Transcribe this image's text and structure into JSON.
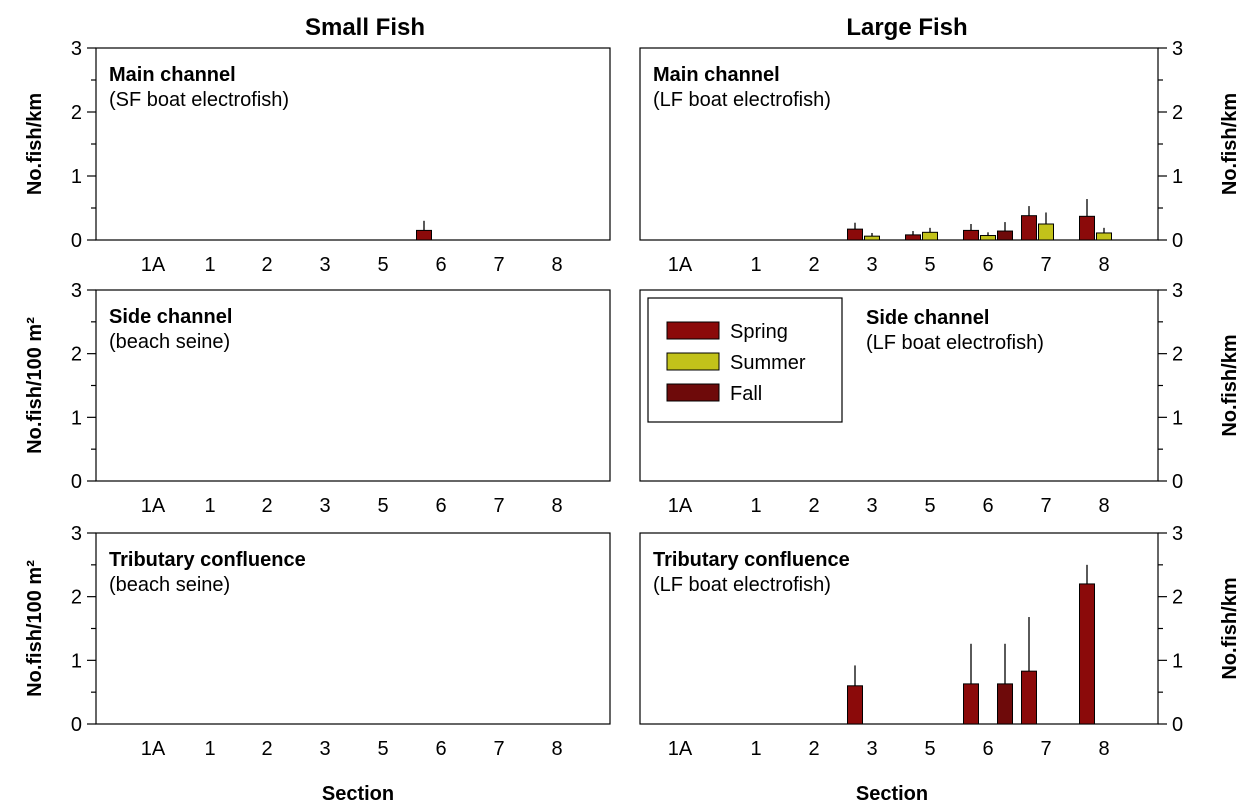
{
  "columns": {
    "small": "Small Fish",
    "large": "Large Fish"
  },
  "xlabel": "Section",
  "legend": {
    "items": [
      "Spring",
      "Summer",
      "Fall"
    ]
  },
  "colors": {
    "Spring": "#8b0a0a",
    "Summer": "#c2c21a",
    "Fall": "#6e0a0a"
  },
  "chart_data": [
    {
      "type": "bar",
      "title": "Main channel",
      "subtitle": "(SF boat electrofish)",
      "ylabel": "No.fish/km",
      "ylim": [
        0,
        3
      ],
      "categories": [
        "1A",
        "1",
        "2",
        "3",
        "5",
        "6",
        "7",
        "8"
      ],
      "series": [
        {
          "name": "Spring",
          "values": [
            0,
            0,
            0,
            0,
            0,
            0.15,
            0,
            0
          ],
          "errors": [
            0,
            0,
            0,
            0,
            0,
            0.15,
            0,
            0
          ]
        },
        {
          "name": "Summer",
          "values": [
            0,
            0,
            0,
            0,
            0,
            0,
            0,
            0
          ],
          "errors": [
            0,
            0,
            0,
            0,
            0,
            0,
            0,
            0
          ]
        },
        {
          "name": "Fall",
          "values": [
            0,
            0,
            0,
            0,
            0,
            0,
            0,
            0
          ],
          "errors": [
            0,
            0,
            0,
            0,
            0,
            0,
            0,
            0
          ]
        }
      ]
    },
    {
      "type": "bar",
      "title": "Main channel",
      "subtitle": "(LF boat electrofish)",
      "ylabel": "No.fish/km",
      "ylim": [
        0,
        3
      ],
      "categories": [
        "1A",
        "1",
        "2",
        "3",
        "5",
        "6",
        "7",
        "8"
      ],
      "series": [
        {
          "name": "Spring",
          "values": [
            0,
            0,
            0,
            0.17,
            0.08,
            0.15,
            0.38,
            0.37
          ],
          "errors": [
            0,
            0,
            0,
            0.1,
            0.06,
            0.1,
            0.15,
            0.27
          ]
        },
        {
          "name": "Summer",
          "values": [
            0,
            0,
            0,
            0.06,
            0.12,
            0.07,
            0.25,
            0.11
          ],
          "errors": [
            0,
            0,
            0,
            0.05,
            0.07,
            0.05,
            0.18,
            0.08
          ]
        },
        {
          "name": "Fall",
          "values": [
            0,
            0,
            0,
            0,
            0,
            0.14,
            0,
            0
          ],
          "errors": [
            0,
            0,
            0,
            0,
            0,
            0.14,
            0,
            0
          ]
        }
      ]
    },
    {
      "type": "bar",
      "title": "Side channel",
      "subtitle": "(beach seine)",
      "ylabel": "No.fish/100 m²",
      "ylim": [
        0,
        3
      ],
      "categories": [
        "1A",
        "1",
        "2",
        "3",
        "5",
        "6",
        "7",
        "8"
      ],
      "series": [
        {
          "name": "Spring",
          "values": [
            0,
            0,
            0,
            0,
            0,
            0,
            0,
            0
          ],
          "errors": [
            0,
            0,
            0,
            0,
            0,
            0,
            0,
            0
          ]
        },
        {
          "name": "Summer",
          "values": [
            0,
            0,
            0,
            0,
            0,
            0,
            0,
            0
          ],
          "errors": [
            0,
            0,
            0,
            0,
            0,
            0,
            0,
            0
          ]
        },
        {
          "name": "Fall",
          "values": [
            0,
            0,
            0,
            0,
            0,
            0,
            0,
            0
          ],
          "errors": [
            0,
            0,
            0,
            0,
            0,
            0,
            0,
            0
          ]
        }
      ]
    },
    {
      "type": "bar",
      "title": "Side channel",
      "subtitle": "(LF boat electrofish)",
      "ylabel": "No.fish/km",
      "ylim": [
        0,
        3
      ],
      "legend_position": "top-left",
      "categories": [
        "1A",
        "1",
        "2",
        "3",
        "5",
        "6",
        "7",
        "8"
      ],
      "series": [
        {
          "name": "Spring",
          "values": [
            0,
            0,
            0,
            0,
            0,
            0,
            0,
            0
          ],
          "errors": [
            0,
            0,
            0,
            0,
            0,
            0,
            0,
            0
          ]
        },
        {
          "name": "Summer",
          "values": [
            0,
            0,
            0,
            0,
            0,
            0,
            0,
            0
          ],
          "errors": [
            0,
            0,
            0,
            0,
            0,
            0,
            0,
            0
          ]
        },
        {
          "name": "Fall",
          "values": [
            0,
            0,
            0,
            0,
            0,
            0,
            0,
            0
          ],
          "errors": [
            0,
            0,
            0,
            0,
            0,
            0,
            0,
            0
          ]
        }
      ]
    },
    {
      "type": "bar",
      "title": "Tributary confluence",
      "subtitle": "(beach seine)",
      "ylabel": "No.fish/100 m²",
      "ylim": [
        0,
        3
      ],
      "categories": [
        "1A",
        "1",
        "2",
        "3",
        "5",
        "6",
        "7",
        "8"
      ],
      "series": [
        {
          "name": "Spring",
          "values": [
            0,
            0,
            0,
            0,
            0,
            0,
            0,
            0
          ],
          "errors": [
            0,
            0,
            0,
            0,
            0,
            0,
            0,
            0
          ]
        },
        {
          "name": "Summer",
          "values": [
            0,
            0,
            0,
            0,
            0,
            0,
            0,
            0
          ],
          "errors": [
            0,
            0,
            0,
            0,
            0,
            0,
            0,
            0
          ]
        },
        {
          "name": "Fall",
          "values": [
            0,
            0,
            0,
            0,
            0,
            0,
            0,
            0
          ],
          "errors": [
            0,
            0,
            0,
            0,
            0,
            0,
            0,
            0
          ]
        }
      ]
    },
    {
      "type": "bar",
      "title": "Tributary confluence",
      "subtitle": "(LF boat electrofish)",
      "ylabel": "No.fish/km",
      "ylim": [
        0,
        3
      ],
      "categories": [
        "1A",
        "1",
        "2",
        "3",
        "5",
        "6",
        "7",
        "8"
      ],
      "series": [
        {
          "name": "Spring",
          "values": [
            0,
            0,
            0,
            0.6,
            0,
            0.63,
            0.83,
            2.2
          ],
          "errors": [
            0,
            0,
            0,
            0.32,
            0,
            0.63,
            0.85,
            0.3
          ]
        },
        {
          "name": "Summer",
          "values": [
            0,
            0,
            0,
            0,
            0,
            0,
            0,
            0
          ],
          "errors": [
            0,
            0,
            0,
            0,
            0,
            0,
            0,
            0
          ]
        },
        {
          "name": "Fall",
          "values": [
            0,
            0,
            0,
            0,
            0,
            0.63,
            0,
            0
          ],
          "errors": [
            0,
            0,
            0,
            0,
            0,
            0.63,
            0,
            0
          ]
        }
      ]
    }
  ]
}
